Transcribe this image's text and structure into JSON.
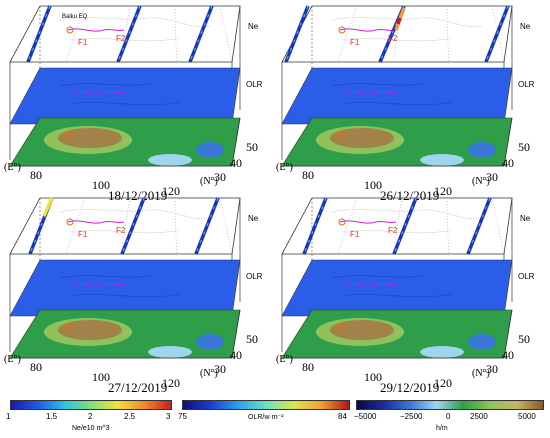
{
  "layers": {
    "ne": "Ne",
    "olr": "OLR"
  },
  "annotations": {
    "f1": "F1",
    "f2": "F2",
    "baiku": "Baiku EQ"
  },
  "axes": {
    "lon_unit": "(E°)",
    "lat_unit": "(N°)",
    "lon_ticks": [
      "80",
      "100",
      "120"
    ],
    "lat_ticks": [
      "30",
      "40",
      "50"
    ]
  },
  "panels": [
    {
      "date": "18/12/2019"
    },
    {
      "date": "26/12/2019"
    },
    {
      "date": "27/12/2019"
    },
    {
      "date": "29/12/2019"
    }
  ],
  "colorbars": {
    "ne": {
      "ticks": [
        "1",
        "1.5",
        "2",
        "2.5",
        "3"
      ],
      "unit": "Ne/e10 m^3"
    },
    "olr": {
      "ticks": [
        "75",
        "84"
      ],
      "unit": "OLR/w·m⁻²"
    },
    "elev": {
      "ticks": [
        "−5000",
        "−2500",
        "0",
        "2500",
        "5000"
      ],
      "unit": "h/m"
    }
  },
  "colors": {
    "olr_plane": "#2a5de8",
    "terrain": "#2f9e4a",
    "plateau": "#a0824a",
    "ne_track": "#1d2fbf"
  }
}
